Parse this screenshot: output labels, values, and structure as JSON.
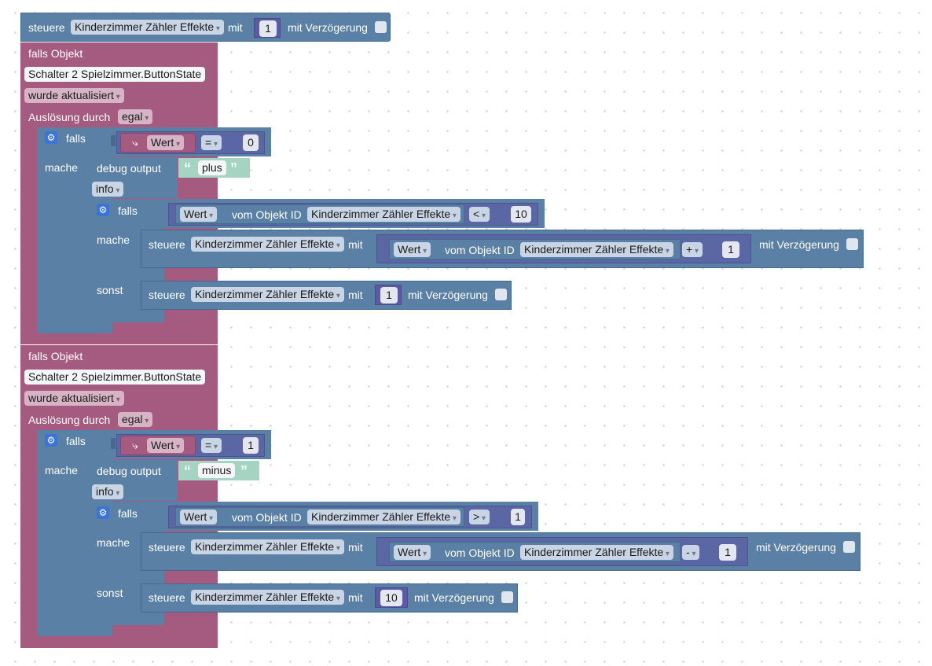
{
  "top_block": {
    "label": "steuere",
    "target": "Kinderzimmer Zähler Effekte",
    "with": "mit",
    "value": "1",
    "delay_label": "mit Verzögerung"
  },
  "handlers": [
    {
      "title": "falls Objekt",
      "object": "Schalter 2 Spielzimmer.ButtonState",
      "event": "wurde aktualisiert",
      "trigger_label": "Auslösung durch",
      "trigger_value": "egal",
      "if_label": "falls",
      "do_label": "mache",
      "cond_var": "Wert",
      "cond_op": "=",
      "cond_value": "0",
      "debug_label": "debug output",
      "debug_text": "plus",
      "debug_level": "info",
      "inner_if_label": "falls",
      "inner_do_label": "mache",
      "inner_else_label": "sonst",
      "inner_cond_var": "Wert",
      "inner_cond_from": "vom Objekt ID",
      "inner_cond_obj": "Kinderzimmer Zähler Effekte",
      "inner_cond_op": "<",
      "inner_cond_value": "10",
      "then_set": "steuere",
      "then_target": "Kinderzimmer Zähler Effekte",
      "then_with": "mit",
      "then_var": "Wert",
      "then_from": "vom Objekt ID",
      "then_obj": "Kinderzimmer Zähler Effekte",
      "then_op": "+",
      "then_num": "1",
      "then_delay": "mit Verzögerung",
      "else_set": "steuere",
      "else_target": "Kinderzimmer Zähler Effekte",
      "else_with": "mit",
      "else_value": "1",
      "else_delay": "mit Verzögerung"
    },
    {
      "title": "falls Objekt",
      "object": "Schalter 2 Spielzimmer.ButtonState",
      "event": "wurde aktualisiert",
      "trigger_label": "Auslösung durch",
      "trigger_value": "egal",
      "if_label": "falls",
      "do_label": "mache",
      "cond_var": "Wert",
      "cond_op": "=",
      "cond_value": "1",
      "debug_label": "debug output",
      "debug_text": "minus",
      "debug_level": "info",
      "inner_if_label": "falls",
      "inner_do_label": "mache",
      "inner_else_label": "sonst",
      "inner_cond_var": "Wert",
      "inner_cond_from": "vom Objekt ID",
      "inner_cond_obj": "Kinderzimmer Zähler Effekte",
      "inner_cond_op": ">",
      "inner_cond_value": "1",
      "then_set": "steuere",
      "then_target": "Kinderzimmer Zähler Effekte",
      "then_with": "mit",
      "then_var": "Wert",
      "then_from": "vom Objekt ID",
      "then_obj": "Kinderzimmer Zähler Effekte",
      "then_op": "-",
      "then_num": "1",
      "then_delay": "mit Verzögerung",
      "else_set": "steuere",
      "else_target": "Kinderzimmer Zähler Effekte",
      "else_with": "mit",
      "else_value": "10",
      "else_delay": "mit Verzögerung"
    }
  ],
  "icons": {
    "gear": "gear-icon",
    "variable": "variable-arrow-icon"
  },
  "colors": {
    "action": "#5b80a5",
    "trigger": "#a55b80",
    "text": "#a5d4c2",
    "math": "#5b67a5"
  }
}
